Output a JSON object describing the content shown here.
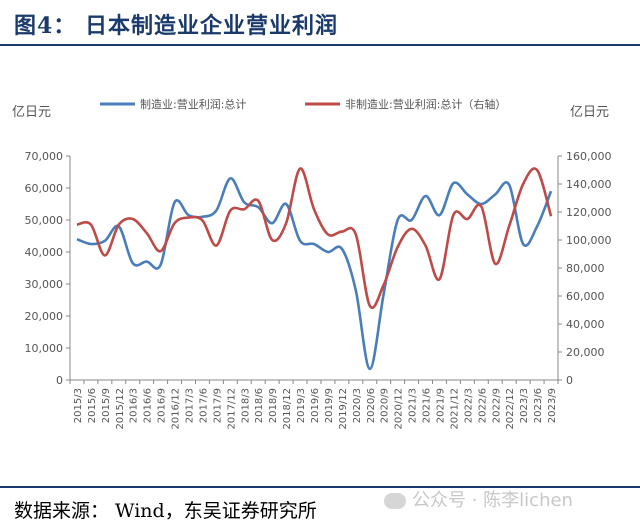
{
  "figure_title": "图4：  日本制造业企业营业利润",
  "source_text": "数据来源：  Wind，东吴证券研究所",
  "watermark_text": "公众号 · 陈李lichen",
  "colors": {
    "title": "#1a3a6b",
    "series_manufacturing": "#4a7ebb",
    "series_non_manufacturing": "#be4b48",
    "axis": "#888888",
    "text": "#555555"
  },
  "chart_data": {
    "type": "line",
    "left_axis_label": "亿日元",
    "right_axis_label": "亿日元",
    "ylim_left": [
      0,
      70000
    ],
    "ylim_right": [
      0,
      160000
    ],
    "left_ticks": [
      0,
      10000,
      20000,
      30000,
      40000,
      50000,
      60000,
      70000
    ],
    "right_ticks": [
      0,
      20000,
      40000,
      60000,
      80000,
      100000,
      120000,
      140000,
      160000
    ],
    "left_tick_labels": [
      "0",
      "10,000",
      "20,000",
      "30,000",
      "40,000",
      "50,000",
      "60,000",
      "70,000"
    ],
    "right_tick_labels": [
      "0",
      "20,000",
      "40,000",
      "60,000",
      "80,000",
      "100,000",
      "120,000",
      "140,000",
      "160,000"
    ],
    "x": [
      "2015/3",
      "2015/6",
      "2015/9",
      "2015/12",
      "2016/3",
      "2016/6",
      "2016/9",
      "2016/12",
      "2017/3",
      "2017/6",
      "2017/9",
      "2017/12",
      "2018/3",
      "2018/6",
      "2018/9",
      "2018/12",
      "2019/3",
      "2019/6",
      "2019/9",
      "2019/12",
      "2020/3",
      "2020/6",
      "2020/9",
      "2020/12",
      "2021/3",
      "2021/6",
      "2021/9",
      "2021/12",
      "2022/3",
      "2022/6",
      "2022/9",
      "2022/12",
      "2023/3",
      "2023/6",
      "2023/9"
    ],
    "series": [
      {
        "name": "制造业:营业利润:总计",
        "axis": "left",
        "values": [
          44000,
          42500,
          43500,
          48000,
          36500,
          37000,
          36000,
          55500,
          51500,
          51000,
          53000,
          63000,
          55500,
          54000,
          49000,
          55000,
          43500,
          42500,
          40000,
          41000,
          28000,
          3500,
          27000,
          50000,
          50000,
          57500,
          51500,
          61500,
          58000,
          55000,
          58000,
          61000,
          42500,
          48000,
          59000
        ]
      },
      {
        "name": "非制造业:营业利润:总计（右轴）",
        "axis": "right",
        "values": [
          111000,
          111000,
          89000,
          111000,
          115000,
          105000,
          92000,
          112000,
          116000,
          114000,
          96000,
          121000,
          122000,
          128000,
          100000,
          112000,
          151000,
          122000,
          104000,
          106000,
          104000,
          53000,
          68000,
          95000,
          108000,
          96000,
          72000,
          118000,
          115000,
          124000,
          83000,
          110000,
          140000,
          150000,
          117000
        ]
      }
    ],
    "legend_position": "top",
    "grid": false
  }
}
